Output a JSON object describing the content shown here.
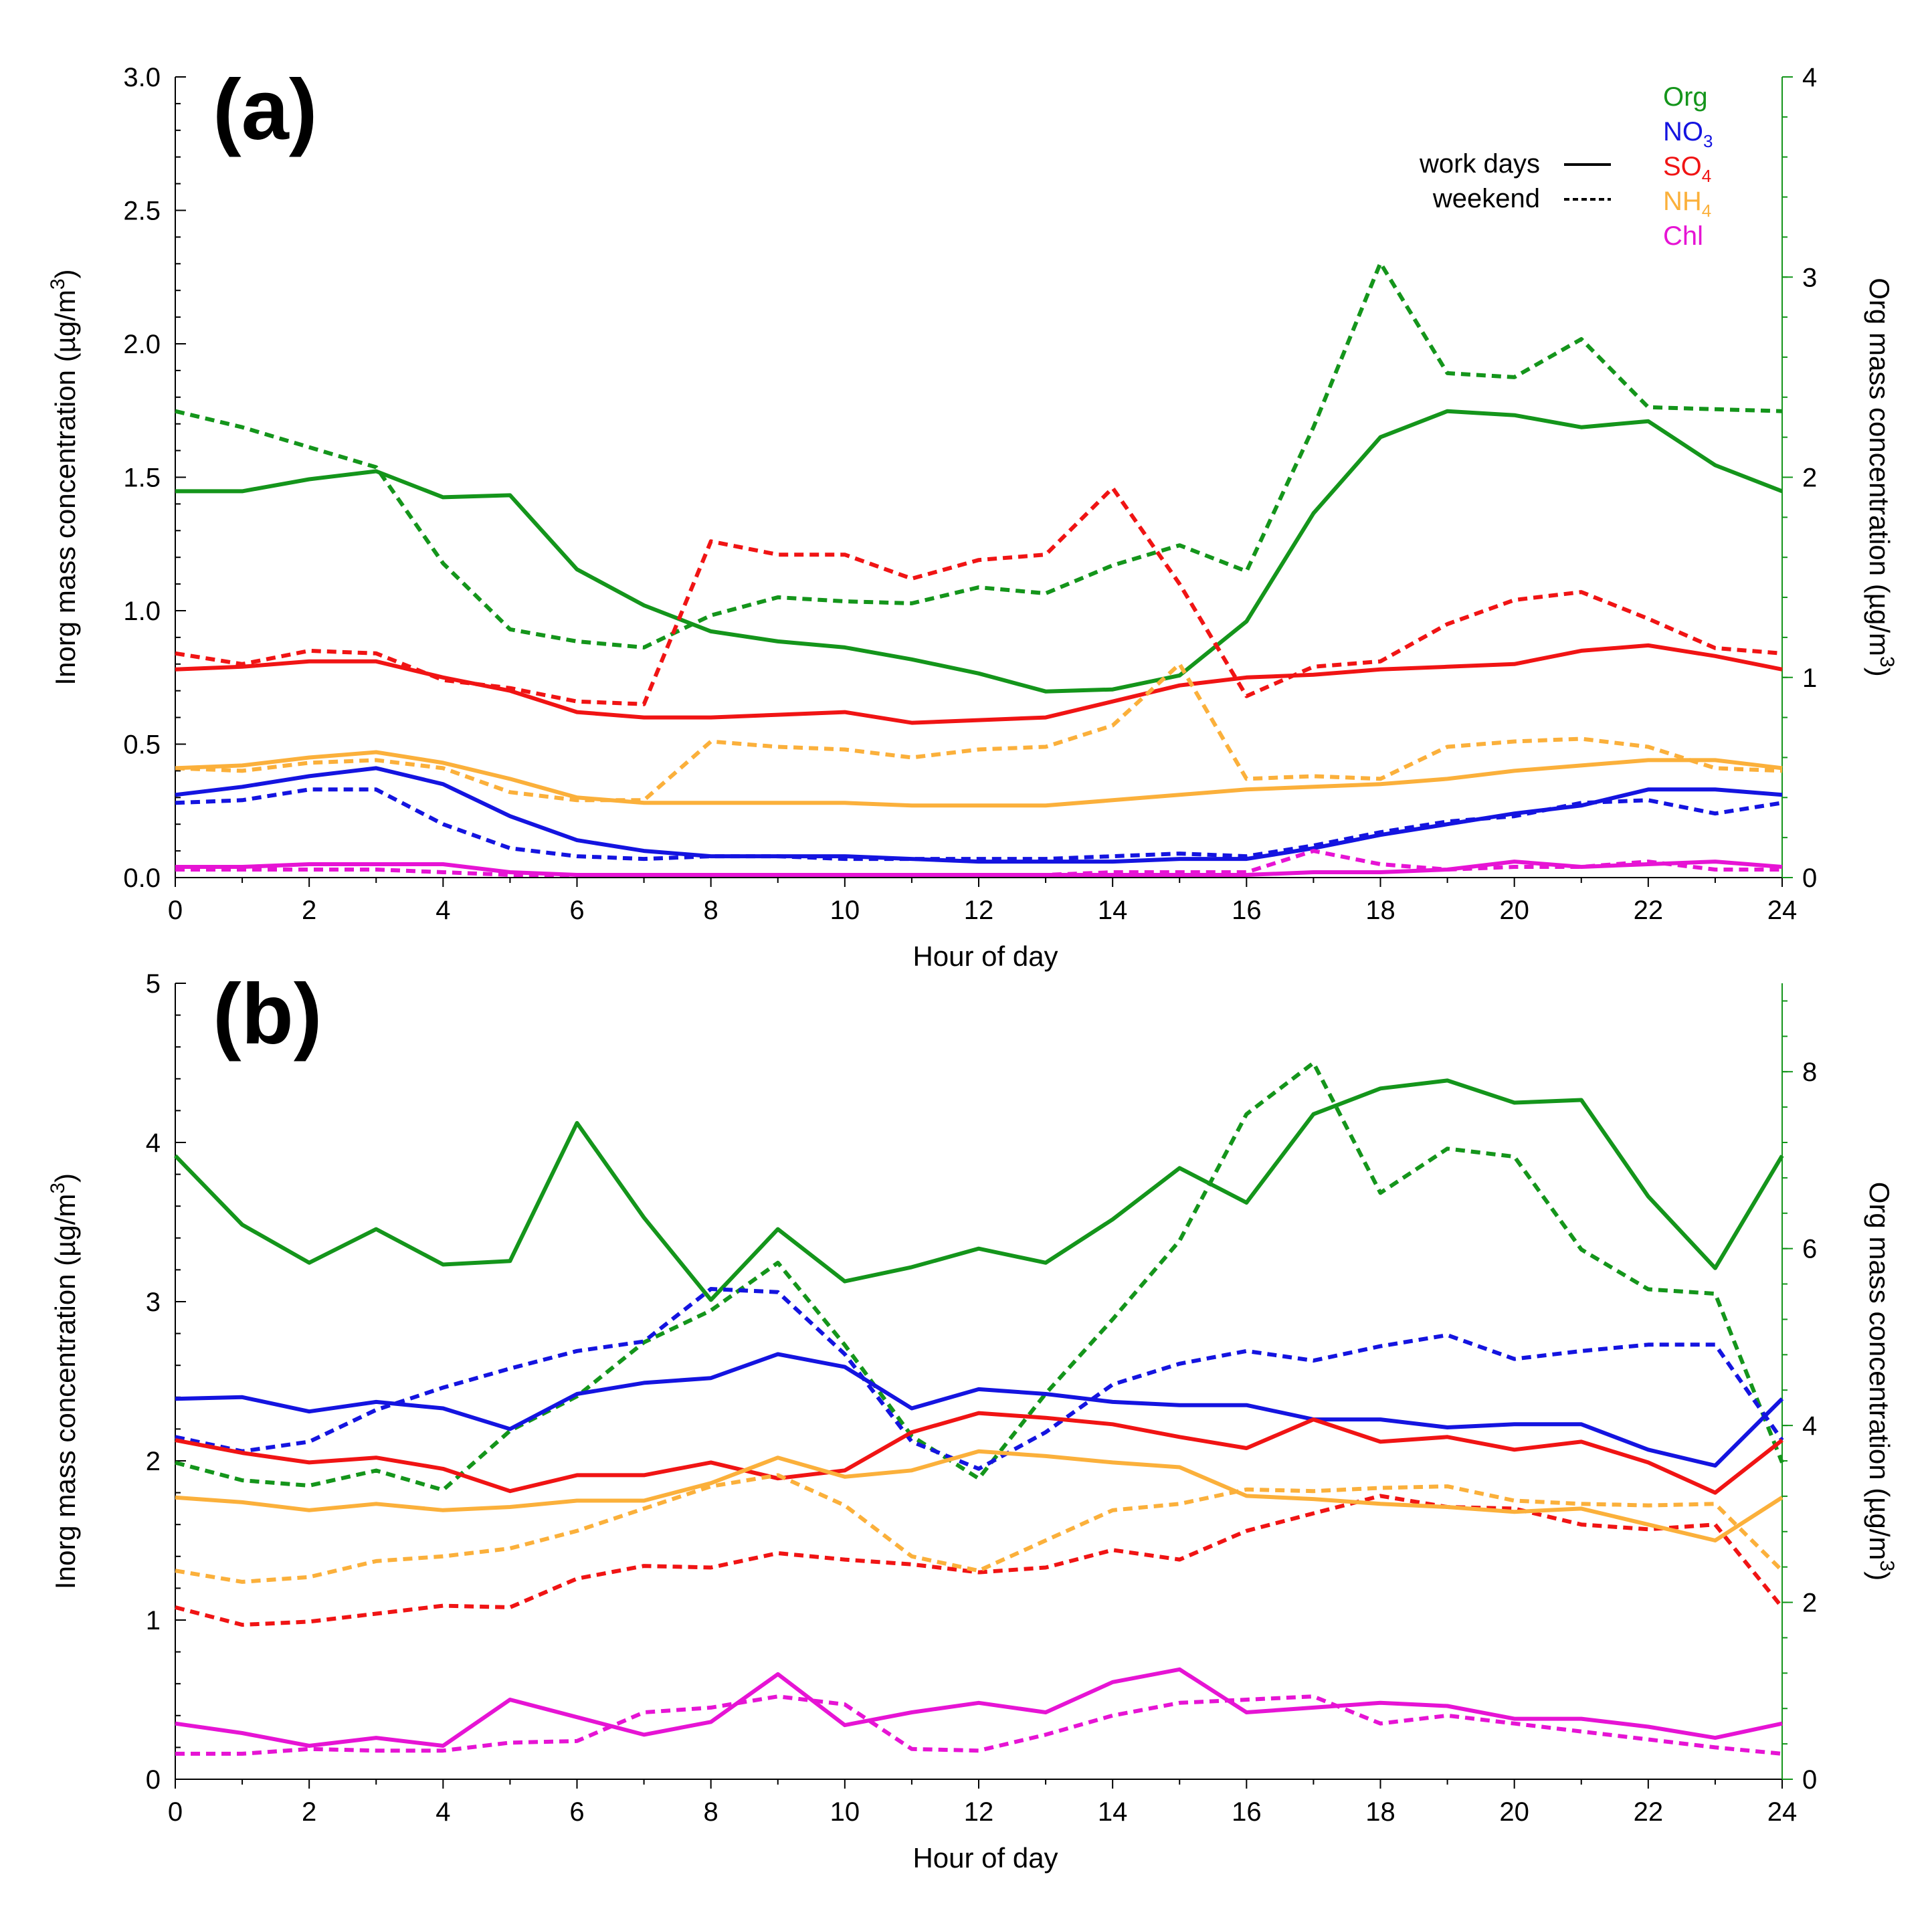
{
  "colors": {
    "Org": "#14951b",
    "NO3": "#1414e0",
    "SO4": "#f01414",
    "NH4": "#fbb03b",
    "Chl": "#e614d4",
    "axis": "#000000"
  },
  "legend": {
    "line_types": [
      {
        "label": "work days",
        "style": "solid"
      },
      {
        "label": "weekend",
        "style": "dashed"
      }
    ],
    "species": [
      {
        "key": "Org",
        "text": "Org",
        "sub": ""
      },
      {
        "key": "NO3",
        "text": "NO",
        "sub": "3"
      },
      {
        "key": "SO4",
        "text": "SO",
        "sub": "4"
      },
      {
        "key": "NH4",
        "text": "NH",
        "sub": "4"
      },
      {
        "key": "Chl",
        "text": "Chl",
        "sub": ""
      }
    ]
  },
  "chart_data": [
    {
      "type": "line",
      "panel_label": "(a)",
      "xlabel": "Hour of day",
      "ylabel": "Inorg mass concentration (µg/m³)",
      "ylabel2": "Org mass concentration (µg/m³)",
      "xlim": [
        0,
        24
      ],
      "ylim": [
        0,
        3.0
      ],
      "ylim2": [
        0,
        4
      ],
      "xticks": [
        0,
        2,
        4,
        6,
        8,
        10,
        12,
        14,
        16,
        18,
        20,
        22,
        24
      ],
      "yticks": [
        "0.0",
        "0.5",
        "1.0",
        "1.5",
        "2.0",
        "2.5",
        "3.0"
      ],
      "yticks2": [
        "0",
        "1",
        "2",
        "3",
        "4"
      ],
      "x": [
        0,
        1,
        2,
        3,
        4,
        5,
        6,
        7,
        8,
        9,
        10,
        11,
        12,
        13,
        14,
        15,
        16,
        17,
        18,
        19,
        20,
        21,
        22,
        23,
        24
      ],
      "series": [
        {
          "name": "Org",
          "type": "work days",
          "axis": "right",
          "values": [
            1.93,
            1.93,
            1.99,
            2.03,
            1.9,
            1.91,
            1.54,
            1.36,
            1.23,
            1.18,
            1.15,
            1.09,
            1.02,
            0.93,
            0.94,
            1.01,
            1.28,
            1.82,
            2.2,
            2.33,
            2.31,
            2.25,
            2.28,
            2.06,
            1.93
          ]
        },
        {
          "name": "Org",
          "type": "weekend",
          "axis": "right",
          "values": [
            2.33,
            2.25,
            2.15,
            2.05,
            1.57,
            1.24,
            1.18,
            1.15,
            1.31,
            1.4,
            1.38,
            1.37,
            1.45,
            1.42,
            1.56,
            1.66,
            1.53,
            2.25,
            3.07,
            2.52,
            2.5,
            2.69,
            2.35,
            2.34,
            2.33
          ]
        },
        {
          "name": "SO4",
          "type": "work days",
          "axis": "left",
          "values": [
            0.78,
            0.79,
            0.81,
            0.81,
            0.75,
            0.7,
            0.62,
            0.6,
            0.6,
            0.61,
            0.62,
            0.58,
            0.59,
            0.6,
            0.66,
            0.72,
            0.75,
            0.76,
            0.78,
            0.79,
            0.8,
            0.85,
            0.87,
            0.83,
            0.78
          ]
        },
        {
          "name": "SO4",
          "type": "weekend",
          "axis": "left",
          "values": [
            0.84,
            0.8,
            0.85,
            0.84,
            0.74,
            0.71,
            0.66,
            0.65,
            1.26,
            1.21,
            1.21,
            1.12,
            1.19,
            1.21,
            1.46,
            1.1,
            0.68,
            0.79,
            0.81,
            0.95,
            1.04,
            1.07,
            0.97,
            0.86,
            0.84
          ]
        },
        {
          "name": "NH4",
          "type": "work days",
          "axis": "left",
          "values": [
            0.41,
            0.42,
            0.45,
            0.47,
            0.43,
            0.37,
            0.3,
            0.28,
            0.28,
            0.28,
            0.28,
            0.27,
            0.27,
            0.27,
            0.29,
            0.31,
            0.33,
            0.34,
            0.35,
            0.37,
            0.4,
            0.42,
            0.44,
            0.44,
            0.41
          ]
        },
        {
          "name": "NH4",
          "type": "weekend",
          "axis": "left",
          "values": [
            0.41,
            0.4,
            0.43,
            0.44,
            0.41,
            0.32,
            0.29,
            0.29,
            0.51,
            0.49,
            0.48,
            0.45,
            0.48,
            0.49,
            0.57,
            0.8,
            0.37,
            0.38,
            0.37,
            0.49,
            0.51,
            0.52,
            0.49,
            0.41,
            0.4
          ]
        },
        {
          "name": "NO3",
          "type": "work days",
          "axis": "left",
          "values": [
            0.31,
            0.34,
            0.38,
            0.41,
            0.35,
            0.23,
            0.14,
            0.1,
            0.08,
            0.08,
            0.08,
            0.07,
            0.06,
            0.06,
            0.06,
            0.07,
            0.07,
            0.11,
            0.16,
            0.2,
            0.24,
            0.27,
            0.33,
            0.33,
            0.31
          ]
        },
        {
          "name": "NO3",
          "type": "weekend",
          "axis": "left",
          "values": [
            0.28,
            0.29,
            0.33,
            0.33,
            0.2,
            0.11,
            0.08,
            0.07,
            0.08,
            0.08,
            0.07,
            0.07,
            0.07,
            0.07,
            0.08,
            0.09,
            0.08,
            0.12,
            0.17,
            0.21,
            0.23,
            0.28,
            0.29,
            0.24,
            0.28
          ]
        },
        {
          "name": "Chl",
          "type": "work days",
          "axis": "left",
          "values": [
            0.04,
            0.04,
            0.05,
            0.05,
            0.05,
            0.02,
            0.01,
            0.01,
            0.01,
            0.01,
            0.01,
            0.01,
            0.01,
            0.01,
            0.01,
            0.01,
            0.01,
            0.02,
            0.02,
            0.03,
            0.06,
            0.04,
            0.05,
            0.06,
            0.04
          ]
        },
        {
          "name": "Chl",
          "type": "weekend",
          "axis": "left",
          "values": [
            0.03,
            0.03,
            0.03,
            0.03,
            0.02,
            0.01,
            0.01,
            0.01,
            0.01,
            0.01,
            0.01,
            0.01,
            0.01,
            0.01,
            0.02,
            0.02,
            0.02,
            0.1,
            0.05,
            0.03,
            0.04,
            0.04,
            0.06,
            0.03,
            0.03
          ]
        }
      ]
    },
    {
      "type": "line",
      "panel_label": "(b)",
      "xlabel": "Hour of day",
      "ylabel": "Inorg mass concentration (µg/m³)",
      "ylabel2": "Org mass concentration (µg/m³)",
      "xlim": [
        0,
        24
      ],
      "ylim": [
        0,
        5
      ],
      "ylim2": [
        0,
        9
      ],
      "xticks": [
        0,
        2,
        4,
        6,
        8,
        10,
        12,
        14,
        16,
        18,
        20,
        22,
        24
      ],
      "yticks": [
        "0",
        "1",
        "2",
        "3",
        "4",
        "5"
      ],
      "yticks2": [
        "0",
        "2",
        "4",
        "6",
        "8"
      ],
      "x": [
        0,
        1,
        2,
        3,
        4,
        5,
        6,
        7,
        8,
        9,
        10,
        11,
        12,
        13,
        14,
        15,
        16,
        17,
        18,
        19,
        20,
        21,
        22,
        23,
        24
      ],
      "series": [
        {
          "name": "Org",
          "type": "work days",
          "axis": "right",
          "values": [
            7.05,
            6.27,
            5.84,
            6.22,
            5.82,
            5.86,
            7.42,
            6.35,
            5.42,
            6.22,
            5.63,
            5.79,
            6.0,
            5.84,
            6.33,
            6.91,
            6.52,
            7.52,
            7.81,
            7.9,
            7.65,
            7.68,
            6.59,
            5.78,
            7.05
          ]
        },
        {
          "name": "Org",
          "type": "weekend",
          "axis": "right",
          "values": [
            3.58,
            3.38,
            3.32,
            3.49,
            3.27,
            3.94,
            4.33,
            4.94,
            5.3,
            5.84,
            4.91,
            3.88,
            3.4,
            4.36,
            5.2,
            6.09,
            7.52,
            8.1,
            6.63,
            7.13,
            7.04,
            5.99,
            5.54,
            5.49,
            3.58
          ]
        },
        {
          "name": "NO3",
          "type": "work days",
          "axis": "left",
          "values": [
            2.39,
            2.4,
            2.31,
            2.37,
            2.33,
            2.2,
            2.42,
            2.49,
            2.52,
            2.67,
            2.59,
            2.33,
            2.45,
            2.42,
            2.37,
            2.35,
            2.35,
            2.26,
            2.26,
            2.21,
            2.23,
            2.23,
            2.07,
            1.97,
            2.39
          ]
        },
        {
          "name": "NO3",
          "type": "weekend",
          "axis": "left",
          "values": [
            2.15,
            2.06,
            2.12,
            2.32,
            2.46,
            2.58,
            2.69,
            2.75,
            3.08,
            3.06,
            2.67,
            2.12,
            1.95,
            2.18,
            2.48,
            2.61,
            2.69,
            2.63,
            2.72,
            2.79,
            2.64,
            2.69,
            2.73,
            2.73,
            2.13
          ]
        },
        {
          "name": "SO4",
          "type": "work days",
          "axis": "left",
          "values": [
            2.13,
            2.05,
            1.99,
            2.02,
            1.95,
            1.81,
            1.91,
            1.91,
            1.99,
            1.89,
            1.94,
            2.18,
            2.3,
            2.27,
            2.23,
            2.15,
            2.08,
            2.26,
            2.12,
            2.15,
            2.07,
            2.12,
            1.99,
            1.8,
            2.13
          ]
        },
        {
          "name": "SO4",
          "type": "weekend",
          "axis": "left",
          "values": [
            1.08,
            0.97,
            0.99,
            1.04,
            1.09,
            1.08,
            1.26,
            1.34,
            1.33,
            1.42,
            1.38,
            1.35,
            1.3,
            1.33,
            1.44,
            1.38,
            1.56,
            1.67,
            1.78,
            1.71,
            1.7,
            1.6,
            1.57,
            1.6,
            1.08
          ]
        },
        {
          "name": "NH4",
          "type": "work days",
          "axis": "left",
          "values": [
            1.77,
            1.74,
            1.69,
            1.73,
            1.69,
            1.71,
            1.75,
            1.75,
            1.86,
            2.02,
            1.9,
            1.94,
            2.06,
            2.03,
            1.99,
            1.96,
            1.78,
            1.76,
            1.73,
            1.71,
            1.68,
            1.7,
            1.6,
            1.5,
            1.77
          ]
        },
        {
          "name": "NH4",
          "type": "weekend",
          "axis": "left",
          "values": [
            1.31,
            1.24,
            1.27,
            1.37,
            1.4,
            1.45,
            1.56,
            1.7,
            1.84,
            1.91,
            1.72,
            1.4,
            1.31,
            1.5,
            1.69,
            1.73,
            1.82,
            1.81,
            1.83,
            1.84,
            1.75,
            1.73,
            1.72,
            1.73,
            1.31
          ]
        },
        {
          "name": "Chl",
          "type": "work days",
          "axis": "left",
          "values": [
            0.35,
            0.29,
            0.21,
            0.26,
            0.21,
            0.5,
            0.39,
            0.28,
            0.36,
            0.66,
            0.34,
            0.42,
            0.48,
            0.42,
            0.61,
            0.69,
            0.42,
            0.45,
            0.48,
            0.46,
            0.38,
            0.38,
            0.33,
            0.26,
            0.35
          ]
        },
        {
          "name": "Chl",
          "type": "weekend",
          "axis": "left",
          "values": [
            0.16,
            0.16,
            0.19,
            0.18,
            0.18,
            0.23,
            0.24,
            0.42,
            0.45,
            0.52,
            0.47,
            0.19,
            0.18,
            0.28,
            0.4,
            0.48,
            0.5,
            0.52,
            0.35,
            0.4,
            0.35,
            0.3,
            0.25,
            0.2,
            0.16
          ]
        }
      ]
    }
  ]
}
